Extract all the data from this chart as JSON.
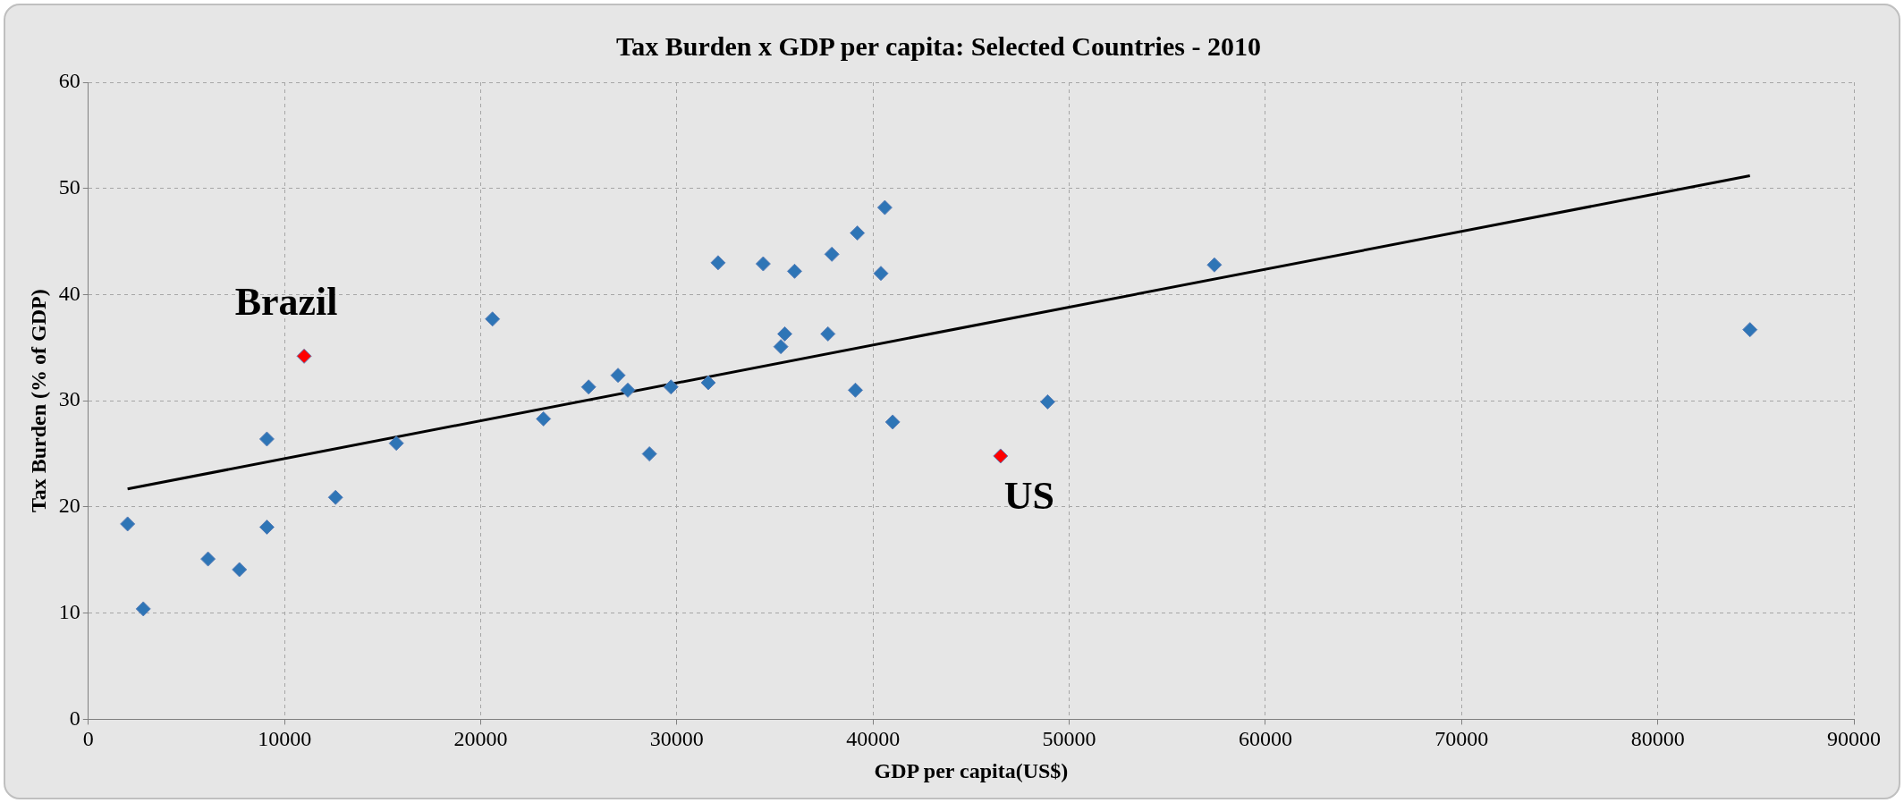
{
  "chart_data": {
    "type": "scatter",
    "title": "Tax Burden x GDP per capita: Selected Countries - 2010",
    "xlabel": "GDP per capita(US$)",
    "ylabel": "Tax Burden (% of GDP)",
    "xlim": [
      0,
      90000
    ],
    "xticks": [
      0,
      10000,
      20000,
      30000,
      40000,
      50000,
      60000,
      70000,
      80000,
      90000
    ],
    "ylim": [
      0,
      60
    ],
    "yticks": [
      0,
      10,
      20,
      30,
      40,
      50,
      60
    ],
    "grid": true,
    "legend": false,
    "marker": "diamond",
    "series": [
      {
        "color": "#2e75b6",
        "x": [
          2000,
          2800,
          6100,
          7700,
          9100,
          9100,
          12600,
          15700,
          20600,
          23200,
          25500,
          27000,
          27500,
          28600,
          29700,
          31600,
          32100,
          34400,
          35300,
          35500,
          36000,
          37700,
          37900,
          39100,
          39200,
          40400,
          40600,
          41000,
          48900,
          57400,
          84700
        ],
        "values": [
          18.4,
          10.4,
          15.1,
          14.1,
          26.4,
          18.1,
          20.9,
          26.0,
          37.7,
          28.3,
          31.3,
          32.4,
          31.0,
          25.0,
          31.3,
          31.7,
          43.0,
          42.9,
          35.1,
          36.3,
          42.2,
          36.3,
          43.8,
          31.0,
          45.8,
          42.0,
          48.2,
          28.0,
          29.9,
          42.8,
          36.7
        ]
      },
      {
        "color": "#ff0000",
        "x": [
          11000,
          46500
        ],
        "values": [
          34.2,
          24.8
        ]
      },
      {
        "type": "line",
        "color": "#000000",
        "marker": "none",
        "x": [
          2000,
          84700
        ],
        "values": [
          21.7,
          51.2
        ]
      }
    ],
    "annotations": [
      {
        "text": "Brazil",
        "x": 11000,
        "y": 34.2
      },
      {
        "text": "US",
        "x": 46500,
        "y": 24.8
      }
    ]
  }
}
